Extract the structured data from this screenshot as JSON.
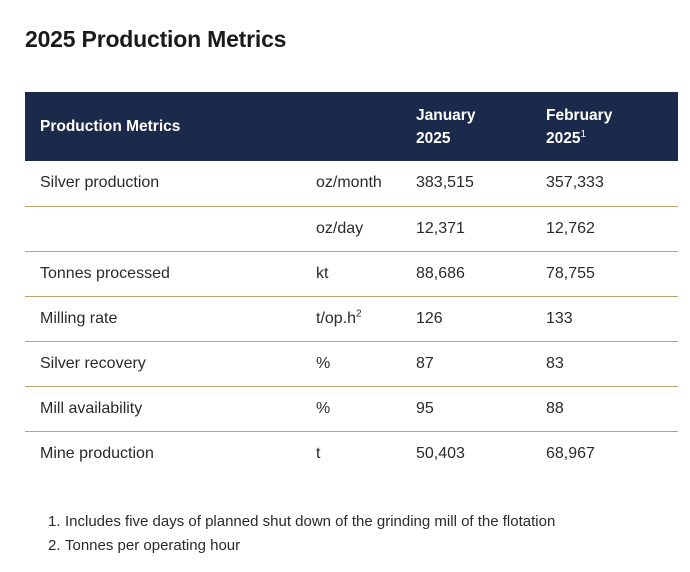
{
  "title": "2025 Production Metrics",
  "table": {
    "headers": {
      "metric": "Production Metrics",
      "unit": "",
      "jan_line1": "January",
      "jan_line2": "2025",
      "feb_line1": "February",
      "feb_line2": "2025",
      "feb_sup": "1"
    },
    "rows": [
      {
        "metric": "Silver production",
        "unit": "oz/month",
        "unit_sup": "",
        "jan": "383,515",
        "feb": "357,333"
      },
      {
        "metric": "",
        "unit": "oz/day",
        "unit_sup": "",
        "jan": "12,371",
        "feb": "12,762"
      },
      {
        "metric": "Tonnes processed",
        "unit": "kt",
        "unit_sup": "",
        "jan": "88,686",
        "feb": "78,755"
      },
      {
        "metric": "Milling rate",
        "unit": "t/op.h",
        "unit_sup": "2",
        "jan": "126",
        "feb": "133"
      },
      {
        "metric": "Silver recovery",
        "unit": "%",
        "unit_sup": "",
        "jan": "87",
        "feb": "83"
      },
      {
        "metric": "Mill availability",
        "unit": "%",
        "unit_sup": "",
        "jan": "95",
        "feb": "88"
      },
      {
        "metric": "Mine production",
        "unit": "t",
        "unit_sup": "",
        "jan": "50,403",
        "feb": "68,967"
      }
    ]
  },
  "footnotes": [
    {
      "num": "1.",
      "text": "Includes five days of planned shut down of the grinding mill of the flotation"
    },
    {
      "num": "2.",
      "text": "Tonnes per operating hour"
    }
  ]
}
